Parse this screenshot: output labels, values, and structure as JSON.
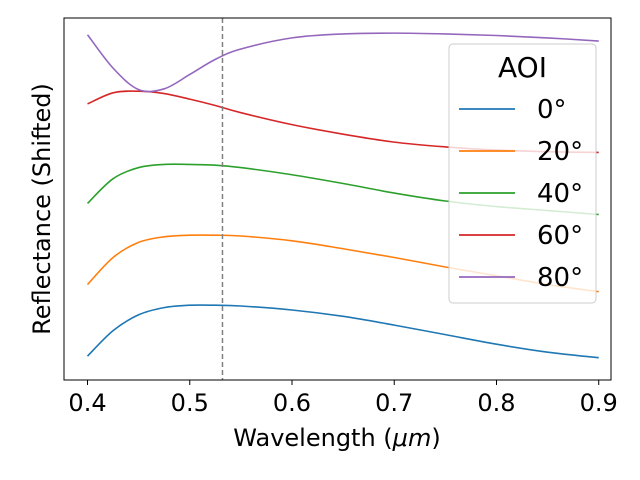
{
  "chart_data": {
    "type": "line",
    "title": "",
    "xlabel": "Wavelength (",
    "xlabel_unit": "μm",
    "xlabel_close": ")",
    "ylabel": "Reflectance (Shifted)",
    "xlim": [
      0.377,
      0.912
    ],
    "ylim": [
      -0.2,
      4.35
    ],
    "x_ticks": [
      0.4,
      0.5,
      0.6,
      0.7,
      0.8,
      0.9
    ],
    "x_tick_labels": [
      "0.4",
      "0.5",
      "0.6",
      "0.7",
      "0.8",
      "0.9"
    ],
    "y_ticks_shown": false,
    "grid": false,
    "vline": {
      "x": 0.532,
      "style": "dashed",
      "color": "#808080"
    },
    "legend": {
      "title": "AOI",
      "placement": "upper right"
    },
    "x": [
      0.4,
      0.425,
      0.45,
      0.475,
      0.5,
      0.525,
      0.55,
      0.6,
      0.65,
      0.7,
      0.75,
      0.8,
      0.85,
      0.9
    ],
    "series": [
      {
        "name": "0°",
        "color": "#1f77b4",
        "values": [
          0.1,
          0.42,
          0.62,
          0.71,
          0.74,
          0.74,
          0.73,
          0.68,
          0.6,
          0.49,
          0.37,
          0.25,
          0.15,
          0.08
        ]
      },
      {
        "name": "20°",
        "color": "#ff7f0e",
        "values": [
          1.0,
          1.34,
          1.53,
          1.6,
          1.62,
          1.62,
          1.61,
          1.55,
          1.45,
          1.34,
          1.22,
          1.11,
          1.0,
          0.91
        ]
      },
      {
        "name": "40°",
        "color": "#2ca02c",
        "values": [
          2.02,
          2.33,
          2.47,
          2.51,
          2.51,
          2.5,
          2.47,
          2.38,
          2.27,
          2.15,
          2.05,
          1.98,
          1.93,
          1.88
        ]
      },
      {
        "name": "60°",
        "color": "#d62728",
        "values": [
          3.27,
          3.41,
          3.43,
          3.4,
          3.33,
          3.25,
          3.16,
          3.01,
          2.89,
          2.79,
          2.73,
          2.69,
          2.67,
          2.66
        ]
      },
      {
        "name": "80°",
        "color": "#9467bd",
        "values": [
          4.14,
          3.72,
          3.45,
          3.46,
          3.64,
          3.83,
          3.96,
          4.1,
          4.15,
          4.16,
          4.15,
          4.13,
          4.1,
          4.06
        ]
      }
    ]
  }
}
